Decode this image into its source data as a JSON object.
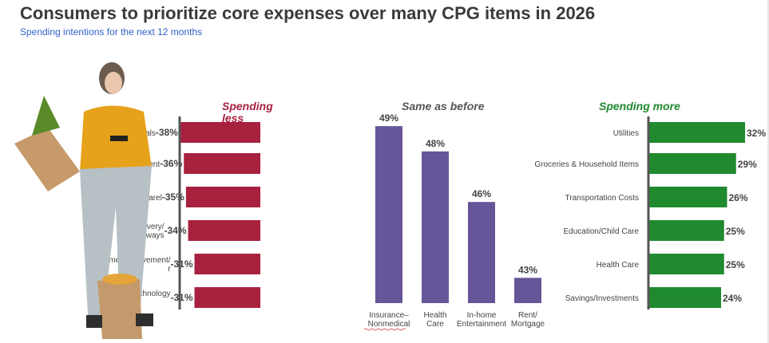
{
  "title": "Consumers to prioritize core expenses over many CPG items in 2026",
  "subtitle": "Spending intentions for the next 12 months",
  "chart_data": [
    {
      "type": "bar",
      "orientation": "horizontal",
      "title": "Spending less",
      "title_visible": "Spending less",
      "color": "#a8213f",
      "categories": [
        "eals",
        "ertainment",
        "ing/Apparel",
        "d delivery/ keaways",
        "ome improvement/ r",
        "E... technology"
      ],
      "values": [
        -38,
        -36,
        -35,
        -34,
        -31,
        -31
      ],
      "labels": [
        "-38%",
        "-36%",
        "-35%",
        "-34%",
        "-31%",
        "-31%"
      ]
    },
    {
      "type": "bar",
      "orientation": "vertical",
      "title": "Same as before",
      "color": "#67559a",
      "categories": [
        "Insurance– Nonmedical",
        "Health Care",
        "In-home Entertainment",
        "Rent/ Mortgage"
      ],
      "values": [
        49,
        48,
        46,
        43
      ],
      "labels": [
        "49%",
        "48%",
        "46%",
        "43%"
      ],
      "ylim": [
        42,
        50
      ]
    },
    {
      "type": "bar",
      "orientation": "horizontal",
      "title": "Spending more",
      "color": "#1f8a2e",
      "categories": [
        "Utilities",
        "Groceries & Household Items",
        "Transportation Costs",
        "Education/Child Care",
        "Health Care",
        "Savings/Investments"
      ],
      "values": [
        32,
        29,
        26,
        25,
        25,
        24
      ],
      "labels": [
        "32%",
        "29%",
        "26%",
        "25%",
        "25%",
        "24%"
      ]
    }
  ]
}
